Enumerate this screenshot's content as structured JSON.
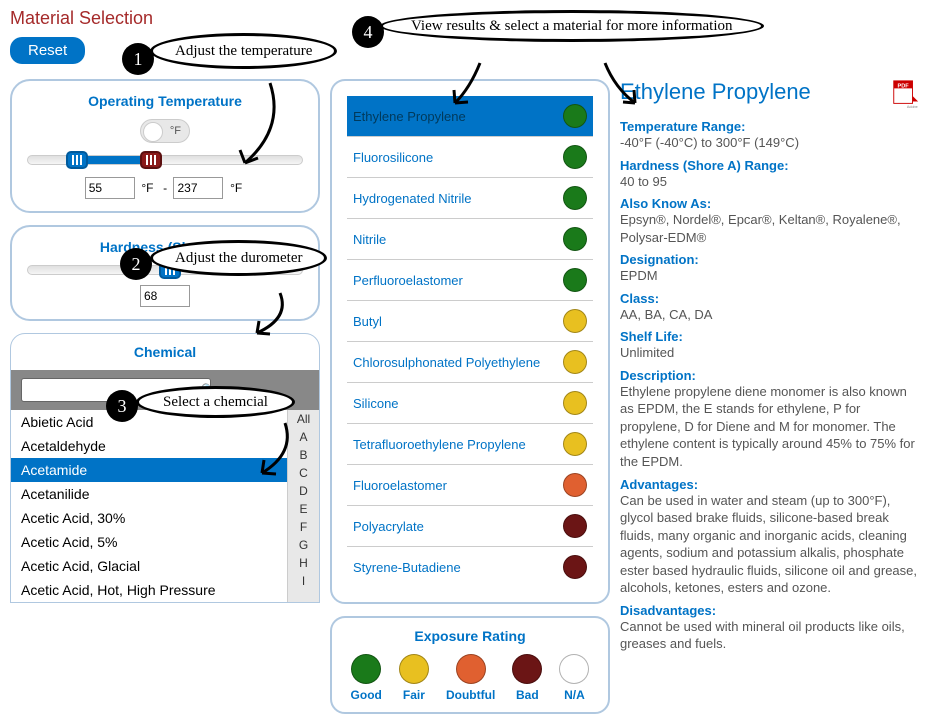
{
  "title": "Material Selection",
  "reset": "Reset",
  "temperature": {
    "panel_title": "Operating Temperature",
    "unit_label": "°F",
    "min_value": "55",
    "max_value": "237",
    "unit_f": "°F",
    "dash": " - ",
    "slider_min_pct": 18,
    "slider_max_pct": 45
  },
  "hardness": {
    "panel_title": "Hardness (Shore A)",
    "value": "68",
    "slider_pct": 52
  },
  "chemical": {
    "panel_title": "Chemical",
    "search_value": "",
    "items": [
      "Abietic Acid",
      "Acetaldehyde",
      "Acetamide",
      "Acetanilide",
      "Acetic Acid, 30%",
      "Acetic Acid, 5%",
      "Acetic Acid, Glacial",
      "Acetic Acid, Hot, High Pressure"
    ],
    "selected_index": 2,
    "alpha": [
      "All",
      "A",
      "B",
      "C",
      "D",
      "E",
      "F",
      "G",
      "H",
      "I"
    ]
  },
  "materials": {
    "colors": {
      "good": "#1a7a1a",
      "fair": "#e8c020",
      "doubtful": "#e06030",
      "bad": "#6b1515",
      "na": "#ffffff"
    },
    "rows": [
      {
        "name": "Ethylene Propylene",
        "rating": "good",
        "selected": true
      },
      {
        "name": "Fluorosilicone",
        "rating": "good"
      },
      {
        "name": "Hydrogenated Nitrile",
        "rating": "good"
      },
      {
        "name": "Nitrile",
        "rating": "good"
      },
      {
        "name": "Perfluoroelastomer",
        "rating": "good"
      },
      {
        "name": "Butyl",
        "rating": "fair"
      },
      {
        "name": "Chlorosulphonated Polyethylene",
        "rating": "fair"
      },
      {
        "name": "Silicone",
        "rating": "fair"
      },
      {
        "name": "Tetrafluoroethylene Propylene",
        "rating": "fair"
      },
      {
        "name": "Fluoroelastomer",
        "rating": "doubtful"
      },
      {
        "name": "Polyacrylate",
        "rating": "bad"
      },
      {
        "name": "Styrene-Butadiene",
        "rating": "bad"
      }
    ]
  },
  "legend": {
    "title": "Exposure Rating",
    "items": [
      {
        "label": "Good",
        "color": "#1a7a1a"
      },
      {
        "label": "Fair",
        "color": "#e8c020"
      },
      {
        "label": "Doubtful",
        "color": "#e06030"
      },
      {
        "label": "Bad",
        "color": "#6b1515"
      },
      {
        "label": "N/A",
        "color": "#ffffff"
      }
    ]
  },
  "detail": {
    "title": "Ethylene Propylene",
    "temp_range_lbl": "Temperature Range:",
    "temp_range_val": "-40°F (-40°C) to 300°F (149°C)",
    "hardness_lbl": "Hardness (Shore A) Range:",
    "hardness_val": "40 to 95",
    "aka_lbl": "Also Know As:",
    "aka_val": "Epsyn®, Nordel®, Epcar®, Keltan®, Royalene®, Polysar-EDM®",
    "designation_lbl": "Designation:",
    "designation_val": "EPDM",
    "class_lbl": "Class:",
    "class_val": "AA, BA, CA, DA",
    "shelf_lbl": "Shelf Life:",
    "shelf_val": "Unlimited",
    "desc_lbl": "Description:",
    "desc_val": "Ethylene propylene diene monomer is also known as EPDM, the E stands for ethylene, P for propylene, D for Diene and M for monomer. The ethylene content is typically around 45% to 75% for the EPDM.",
    "adv_lbl": "Advantages:",
    "adv_val": "Can be used in water and steam (up to 300°F), glycol based brake fluids, silicone-based break fluids, many organic and inorganic acids, cleaning agents, sodium and potassium alkalis, phosphate ester based hydraulic fluids, silicone oil and grease, alcohols, ketones, esters and ozone.",
    "dis_lbl": "Disadvantages:",
    "dis_val": "Cannot be used with mineral oil products like oils, greases and fuels."
  },
  "callouts": {
    "1": "Adjust the temperature",
    "2": "Adjust the durometer",
    "3": "Select a chemcial",
    "4": "View results & select a material for more information"
  }
}
